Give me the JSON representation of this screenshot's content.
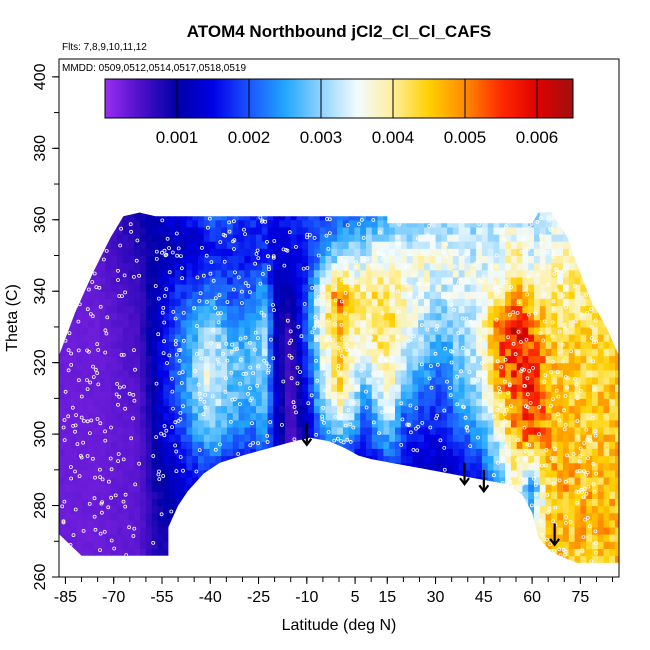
{
  "chart_data": {
    "type": "heatmap",
    "title": "ATOM4 Northbound jCl2_Cl_Cl_CAFS",
    "flights_label": "Flts: 7,8,9,10,11,12",
    "dates_label": "MMDD: 0509,0512,0514,0517,0518,0519",
    "xlabel": "Latitude (deg N)",
    "ylabel": "Theta (C)",
    "xlim": [
      -87,
      87
    ],
    "ylim": [
      260,
      405
    ],
    "x_ticks": [
      -85,
      -70,
      -55,
      -40,
      -25,
      -10,
      5,
      15,
      30,
      45,
      60,
      75
    ],
    "y_ticks": [
      260,
      280,
      300,
      320,
      340,
      360,
      380,
      400
    ],
    "colorbar": {
      "range": [
        0,
        0.0065
      ],
      "ticks": [
        0.001,
        0.002,
        0.003,
        0.004,
        0.005,
        0.006
      ],
      "tick_labels": [
        "0.001",
        "0.002",
        "0.003",
        "0.004",
        "0.005",
        "0.006"
      ],
      "colors": [
        "#9a2ef2",
        "#4a10c8",
        "#0000a8",
        "#0000e6",
        "#1a55ff",
        "#22a6ff",
        "#8fd3ff",
        "#f2fbff",
        "#ffef9a",
        "#ffd000",
        "#ff8a00",
        "#ff2a00",
        "#e00000",
        "#9e1010"
      ]
    },
    "domain_lower_boundary": [
      [
        -87,
        272
      ],
      [
        -80,
        266
      ],
      [
        -53,
        266
      ],
      [
        -53,
        274
      ],
      [
        -50,
        280
      ],
      [
        -47,
        284
      ],
      [
        -42,
        289
      ],
      [
        -37,
        292
      ],
      [
        -30,
        294
      ],
      [
        -22,
        296
      ],
      [
        -14,
        298
      ],
      [
        -9,
        299
      ],
      [
        -3,
        298
      ],
      [
        2,
        296
      ],
      [
        6,
        294
      ],
      [
        10,
        293
      ],
      [
        16,
        292
      ],
      [
        22,
        291
      ],
      [
        28,
        290
      ],
      [
        34,
        289
      ],
      [
        40,
        288
      ],
      [
        46,
        287
      ],
      [
        52,
        286
      ],
      [
        57,
        283
      ],
      [
        60,
        278
      ],
      [
        62,
        271
      ],
      [
        66,
        267
      ],
      [
        71,
        265
      ],
      [
        74,
        264
      ],
      [
        87,
        264
      ]
    ],
    "domain_upper_boundary": [
      [
        -87,
        322
      ],
      [
        -82,
        334
      ],
      [
        -76,
        346
      ],
      [
        -71,
        355
      ],
      [
        -67,
        361
      ],
      [
        -62,
        362
      ],
      [
        -57,
        361
      ],
      [
        15,
        361
      ],
      [
        15,
        359
      ],
      [
        60,
        359
      ],
      [
        62,
        362
      ],
      [
        66,
        362
      ],
      [
        71,
        355
      ],
      [
        75,
        345
      ],
      [
        78,
        338
      ],
      [
        83,
        330
      ],
      [
        87,
        322
      ]
    ],
    "value_field": [
      {
        "lat": -87,
        "v": [
          [
            264,
            0.0003
          ],
          [
            330,
            0.0003
          ]
        ]
      },
      {
        "lat": -75,
        "v": [
          [
            264,
            0.0003
          ],
          [
            330,
            0.0003
          ],
          [
            350,
            0.0004
          ]
        ]
      },
      {
        "lat": -62,
        "v": [
          [
            264,
            0.0004
          ],
          [
            300,
            0.0004
          ],
          [
            340,
            0.0006
          ],
          [
            360,
            0.0009
          ]
        ]
      },
      {
        "lat": -56,
        "v": [
          [
            264,
            0.0008
          ],
          [
            280,
            0.0009
          ],
          [
            300,
            0.0012
          ],
          [
            330,
            0.0014
          ],
          [
            352,
            0.001
          ],
          [
            360,
            0.0012
          ]
        ]
      },
      {
        "lat": -50,
        "v": [
          [
            264,
            0.0009
          ],
          [
            285,
            0.0012
          ],
          [
            300,
            0.0018
          ],
          [
            320,
            0.0022
          ],
          [
            340,
            0.0018
          ],
          [
            352,
            0.0011
          ],
          [
            360,
            0.0014
          ]
        ]
      },
      {
        "lat": -44,
        "v": [
          [
            286,
            0.0015
          ],
          [
            300,
            0.0024
          ],
          [
            315,
            0.0031
          ],
          [
            330,
            0.0027
          ],
          [
            345,
            0.0016
          ],
          [
            356,
            0.0013
          ],
          [
            360,
            0.0019
          ]
        ]
      },
      {
        "lat": -40,
        "v": [
          [
            289,
            0.0018
          ],
          [
            300,
            0.0028
          ],
          [
            315,
            0.0036
          ],
          [
            328,
            0.0034
          ],
          [
            340,
            0.0022
          ],
          [
            352,
            0.0015
          ],
          [
            360,
            0.0021
          ]
        ]
      },
      {
        "lat": -34,
        "v": [
          [
            292,
            0.0017
          ],
          [
            305,
            0.0027
          ],
          [
            320,
            0.0029
          ],
          [
            335,
            0.0021
          ],
          [
            350,
            0.0017
          ],
          [
            360,
            0.0019
          ]
        ]
      },
      {
        "lat": -28,
        "v": [
          [
            293,
            0.0016
          ],
          [
            305,
            0.0024
          ],
          [
            320,
            0.0028
          ],
          [
            335,
            0.0023
          ],
          [
            350,
            0.0016
          ],
          [
            360,
            0.0017
          ]
        ]
      },
      {
        "lat": -23,
        "v": [
          [
            294,
            0.0019
          ],
          [
            310,
            0.0028
          ],
          [
            325,
            0.0031
          ],
          [
            338,
            0.0026
          ],
          [
            350,
            0.0017
          ],
          [
            360,
            0.0018
          ]
        ]
      },
      {
        "lat": -19,
        "v": [
          [
            295,
            0.0012
          ],
          [
            310,
            0.0011
          ],
          [
            330,
            0.0009
          ],
          [
            345,
            0.0012
          ],
          [
            360,
            0.0015
          ]
        ]
      },
      {
        "lat": -15,
        "v": [
          [
            297,
            0.0004
          ],
          [
            315,
            0.0004
          ],
          [
            330,
            0.0006
          ],
          [
            345,
            0.0013
          ],
          [
            360,
            0.0016
          ]
        ]
      },
      {
        "lat": -10,
        "v": [
          [
            298,
            0.0011
          ],
          [
            315,
            0.0016
          ],
          [
            330,
            0.0022
          ],
          [
            345,
            0.0016
          ],
          [
            360,
            0.0018
          ]
        ]
      },
      {
        "lat": -5,
        "v": [
          [
            299,
            0.0021
          ],
          [
            310,
            0.0031
          ],
          [
            325,
            0.0036
          ],
          [
            340,
            0.0038
          ],
          [
            350,
            0.0024
          ],
          [
            360,
            0.0018
          ]
        ]
      },
      {
        "lat": 0,
        "v": [
          [
            297,
            0.0023
          ],
          [
            310,
            0.0041
          ],
          [
            322,
            0.0045
          ],
          [
            338,
            0.0052
          ],
          [
            350,
            0.0031
          ],
          [
            360,
            0.002
          ]
        ]
      },
      {
        "lat": 4,
        "v": [
          [
            295,
            0.0018
          ],
          [
            308,
            0.0034
          ],
          [
            322,
            0.0038
          ],
          [
            336,
            0.0044
          ],
          [
            350,
            0.0033
          ],
          [
            360,
            0.0021
          ]
        ]
      },
      {
        "lat": 8,
        "v": [
          [
            294,
            0.0014
          ],
          [
            308,
            0.0022
          ],
          [
            320,
            0.0033
          ],
          [
            336,
            0.0041
          ],
          [
            350,
            0.0034
          ],
          [
            360,
            0.0023
          ]
        ]
      },
      {
        "lat": 12,
        "v": [
          [
            293,
            0.0017
          ],
          [
            305,
            0.0028
          ],
          [
            318,
            0.0037
          ],
          [
            333,
            0.0044
          ],
          [
            348,
            0.0038
          ],
          [
            360,
            0.0025
          ]
        ]
      },
      {
        "lat": 16,
        "v": [
          [
            292,
            0.0019
          ],
          [
            305,
            0.0032
          ],
          [
            318,
            0.004
          ],
          [
            333,
            0.0042
          ],
          [
            348,
            0.0037
          ],
          [
            360,
            0.0027
          ]
        ]
      },
      {
        "lat": 20,
        "v": [
          [
            292,
            0.0015
          ],
          [
            305,
            0.0021
          ],
          [
            318,
            0.0032
          ],
          [
            333,
            0.0038
          ],
          [
            348,
            0.0036
          ],
          [
            360,
            0.0028
          ]
        ]
      },
      {
        "lat": 26,
        "v": [
          [
            291,
            0.0013
          ],
          [
            305,
            0.0018
          ],
          [
            320,
            0.0026
          ],
          [
            335,
            0.0034
          ],
          [
            350,
            0.0036
          ],
          [
            360,
            0.0029
          ]
        ]
      },
      {
        "lat": 32,
        "v": [
          [
            290,
            0.0012
          ],
          [
            305,
            0.0017
          ],
          [
            320,
            0.0023
          ],
          [
            338,
            0.0032
          ],
          [
            350,
            0.0036
          ],
          [
            360,
            0.003
          ]
        ]
      },
      {
        "lat": 38,
        "v": [
          [
            289,
            0.0014
          ],
          [
            300,
            0.002
          ],
          [
            315,
            0.0028
          ],
          [
            330,
            0.0031
          ],
          [
            345,
            0.0034
          ],
          [
            360,
            0.0031
          ]
        ]
      },
      {
        "lat": 44,
        "v": [
          [
            288,
            0.0016
          ],
          [
            300,
            0.0025
          ],
          [
            315,
            0.0033
          ],
          [
            330,
            0.0035
          ],
          [
            345,
            0.0035
          ],
          [
            360,
            0.0031
          ]
        ]
      },
      {
        "lat": 50,
        "v": [
          [
            287,
            0.0026
          ],
          [
            300,
            0.0036
          ],
          [
            315,
            0.0049
          ],
          [
            330,
            0.0052
          ],
          [
            342,
            0.0038
          ],
          [
            360,
            0.0032
          ]
        ]
      },
      {
        "lat": 55,
        "v": [
          [
            285,
            0.0039
          ],
          [
            298,
            0.0047
          ],
          [
            315,
            0.0055
          ],
          [
            328,
            0.006
          ],
          [
            342,
            0.0045
          ],
          [
            360,
            0.0034
          ]
        ]
      },
      {
        "lat": 60,
        "v": [
          [
            270,
            0.0035
          ],
          [
            285,
            0.0022
          ],
          [
            300,
            0.0054
          ],
          [
            318,
            0.0057
          ],
          [
            330,
            0.0052
          ],
          [
            345,
            0.0036
          ],
          [
            360,
            0.0031
          ]
        ]
      },
      {
        "lat": 65,
        "v": [
          [
            266,
            0.0046
          ],
          [
            280,
            0.0043
          ],
          [
            300,
            0.0048
          ],
          [
            320,
            0.0046
          ],
          [
            338,
            0.0041
          ],
          [
            350,
            0.0036
          ],
          [
            360,
            0.0032
          ]
        ]
      },
      {
        "lat": 70,
        "v": [
          [
            265,
            0.0045
          ],
          [
            285,
            0.0047
          ],
          [
            305,
            0.0045
          ],
          [
            325,
            0.0043
          ],
          [
            345,
            0.0039
          ],
          [
            360,
            0.0035
          ]
        ]
      },
      {
        "lat": 78,
        "v": [
          [
            264,
            0.0046
          ],
          [
            285,
            0.0046
          ],
          [
            310,
            0.0044
          ],
          [
            330,
            0.0043
          ],
          [
            345,
            0.004
          ]
        ]
      },
      {
        "lat": 87,
        "v": [
          [
            264,
            0.0046
          ],
          [
            300,
            0.0046
          ],
          [
            322,
            0.0044
          ]
        ]
      }
    ],
    "arrows": [
      {
        "lat": -10,
        "theta_top": 303,
        "theta_tip": 297
      },
      {
        "lat": 39,
        "theta_top": 292,
        "theta_tip": 286
      },
      {
        "lat": 45,
        "theta_top": 290,
        "theta_tip": 284
      },
      {
        "lat": 67,
        "theta_top": 275,
        "theta_tip": 269
      }
    ]
  }
}
